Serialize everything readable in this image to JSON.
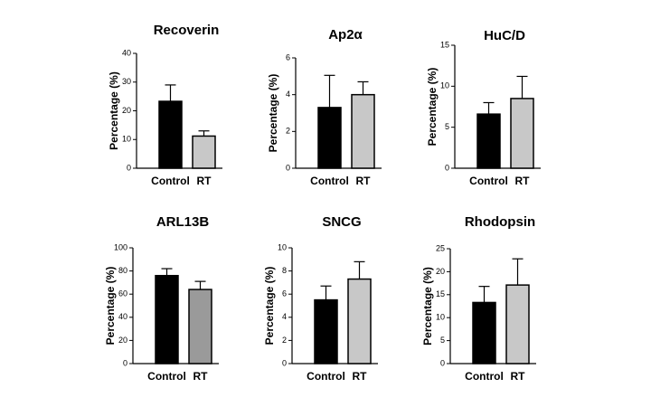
{
  "chart_data": [
    {
      "type": "bar",
      "title": "Recoverin",
      "y_label": "Percentage (%)",
      "categories": [
        "Control",
        "RT"
      ],
      "values": [
        23.3,
        11.2
      ],
      "errors": [
        5.7,
        1.8
      ],
      "colors": [
        "#000000",
        "#c8c8c8"
      ],
      "ylim": [
        0,
        40
      ],
      "yticks": [
        0,
        10,
        20,
        30,
        40
      ]
    },
    {
      "type": "bar",
      "title": "Ap2α",
      "y_label": "Percentage (%)",
      "categories": [
        "Control",
        "RT"
      ],
      "values": [
        3.3,
        4.0
      ],
      "errors": [
        1.75,
        0.7
      ],
      "colors": [
        "#000000",
        "#c8c8c8"
      ],
      "ylim": [
        0,
        6
      ],
      "yticks": [
        0,
        2,
        4,
        6
      ]
    },
    {
      "type": "bar",
      "title": "HuC/D",
      "y_label": "Percentage (%)",
      "categories": [
        "Control",
        "RT"
      ],
      "values": [
        6.6,
        8.5
      ],
      "errors": [
        1.4,
        2.7
      ],
      "colors": [
        "#000000",
        "#c8c8c8"
      ],
      "ylim": [
        0,
        15
      ],
      "yticks": [
        0,
        5,
        10,
        15
      ]
    },
    {
      "type": "bar",
      "title": "ARL13B",
      "y_label": "Percentage (%)",
      "categories": [
        "Control",
        "RT"
      ],
      "values": [
        76,
        64
      ],
      "errors": [
        6,
        7
      ],
      "colors": [
        "#000000",
        "#9a9a9a"
      ],
      "ylim": [
        0,
        100
      ],
      "yticks": [
        0,
        20,
        40,
        60,
        80,
        100
      ]
    },
    {
      "type": "bar",
      "title": "SNCG",
      "y_label": "Percentage (%)",
      "categories": [
        "Control",
        "RT"
      ],
      "values": [
        5.5,
        7.3
      ],
      "errors": [
        1.2,
        1.5
      ],
      "colors": [
        "#000000",
        "#c8c8c8"
      ],
      "ylim": [
        0,
        10
      ],
      "yticks": [
        0,
        2,
        4,
        6,
        8,
        10
      ]
    },
    {
      "type": "bar",
      "title": "Rhodopsin",
      "y_label": "Percentage (%)",
      "categories": [
        "Control",
        "RT"
      ],
      "values": [
        13.3,
        17.1
      ],
      "errors": [
        3.5,
        5.7
      ],
      "colors": [
        "#000000",
        "#c8c8c8"
      ],
      "ylim": [
        0,
        25
      ],
      "yticks": [
        0,
        5,
        10,
        15,
        20,
        25
      ]
    }
  ]
}
